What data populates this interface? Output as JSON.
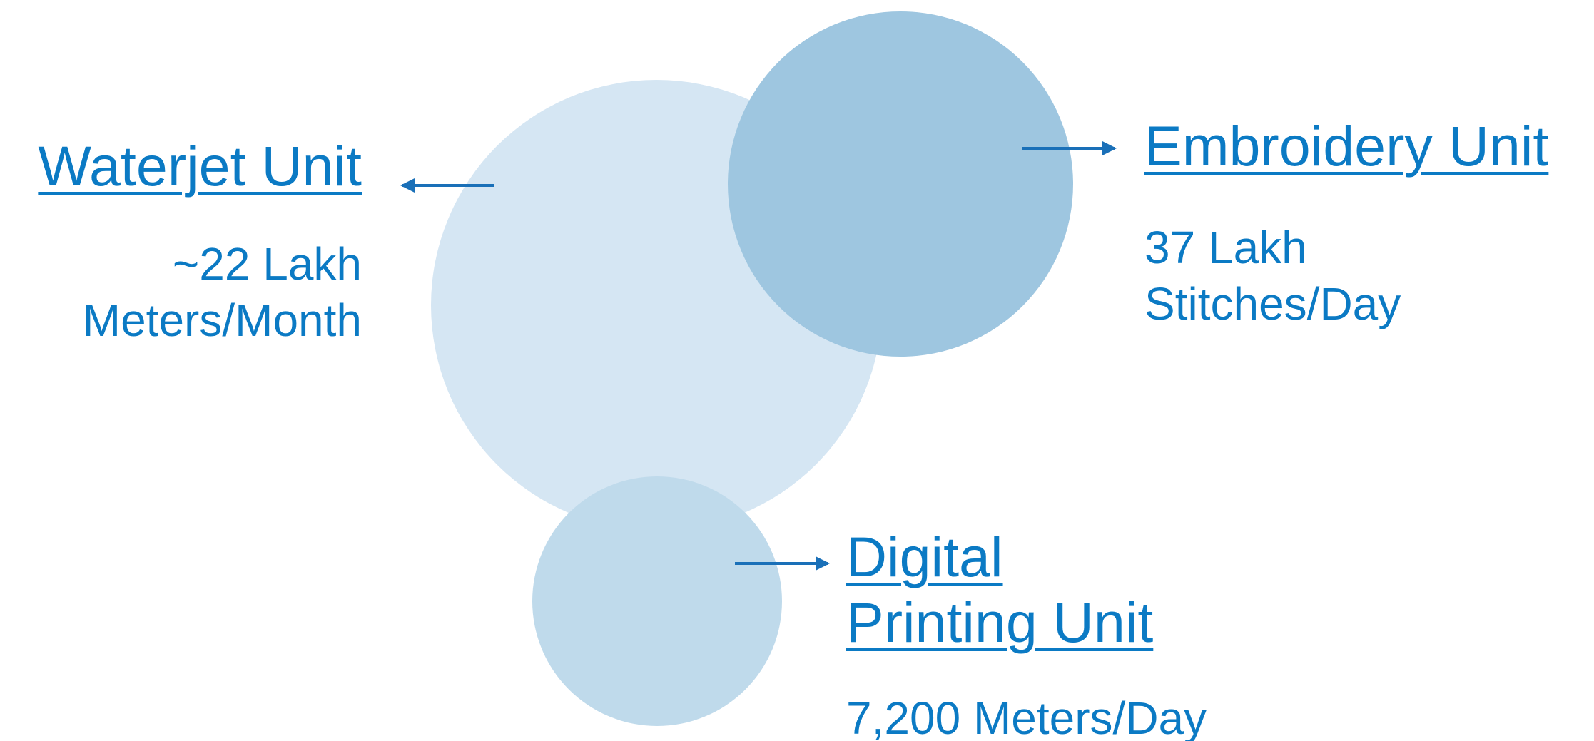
{
  "colors": {
    "text": "#0b7ac4",
    "arrow": "#1a70b8",
    "circle_large": "#d5e6f3",
    "circle_embroidery": "#9ec6e0",
    "circle_digital": "#bfdaeb"
  },
  "units": [
    {
      "id": "waterjet",
      "title_lines": [
        "Waterjet Unit"
      ],
      "metric_lines": [
        "~22 Lakh",
        "Meters/Month"
      ]
    },
    {
      "id": "embroidery",
      "title_lines": [
        "Embroidery Unit"
      ],
      "metric_lines": [
        "37 Lakh",
        "Stitches/Day"
      ]
    },
    {
      "id": "digital",
      "title_lines": [
        "Digital",
        "Printing Unit"
      ],
      "metric_lines": [
        "7,200 Meters/Day"
      ]
    }
  ]
}
